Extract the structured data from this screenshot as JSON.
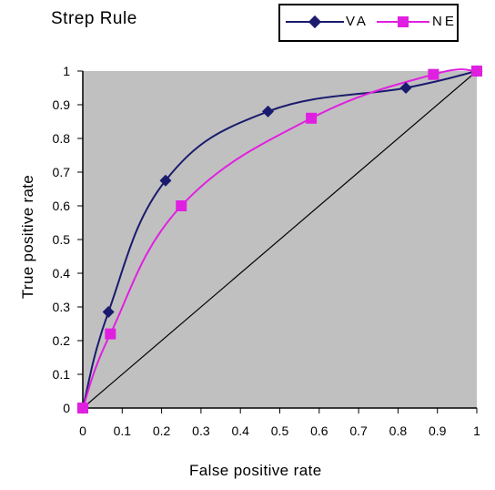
{
  "chart_data": {
    "type": "line",
    "title": "Strep Rule",
    "xlabel": "False positive rate",
    "ylabel": "True positive rate",
    "xlim": [
      0,
      1
    ],
    "ylim": [
      0,
      1
    ],
    "x_ticks": [
      "0",
      "0.1",
      "0.2",
      "0.3",
      "0.4",
      "0.5",
      "0.6",
      "0.7",
      "0.8",
      "0.9",
      "1"
    ],
    "y_ticks": [
      "0",
      "0.1",
      "0.2",
      "0.3",
      "0.4",
      "0.5",
      "0.6",
      "0.7",
      "0.8",
      "0.9",
      "1"
    ],
    "legend_position": "top-right",
    "plot_background": "#c0c0c0",
    "series": [
      {
        "name": "VA",
        "color": "#1a1a6e",
        "marker": "diamond",
        "x": [
          0,
          0.065,
          0.21,
          0.47,
          0.82,
          1
        ],
        "y": [
          0,
          0.285,
          0.675,
          0.88,
          0.95,
          1
        ]
      },
      {
        "name": "NE",
        "color": "#e020e0",
        "marker": "square",
        "x": [
          0,
          0.07,
          0.25,
          0.58,
          0.89,
          1
        ],
        "y": [
          0,
          0.22,
          0.6,
          0.86,
          0.99,
          1
        ]
      }
    ],
    "reference_line": {
      "x": [
        0,
        1
      ],
      "y": [
        0,
        1
      ],
      "color": "#000000"
    }
  }
}
